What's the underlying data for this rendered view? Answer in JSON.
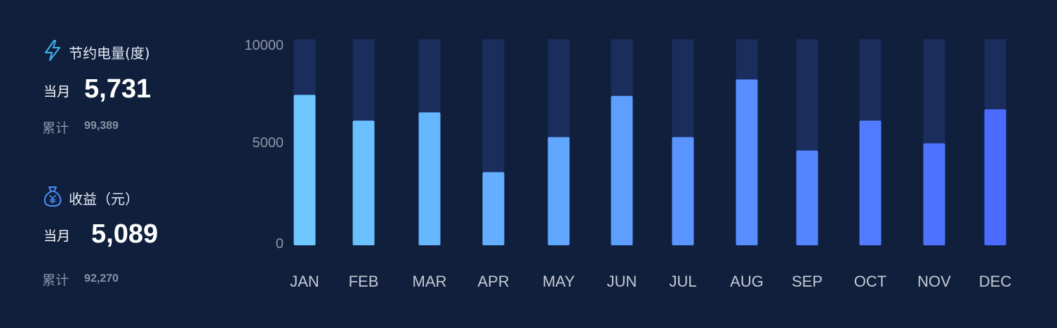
{
  "energy": {
    "title": "节约电量(度)",
    "icon": "lightning-icon",
    "month_label": "当月",
    "month_value": "5,731",
    "total_label": "累计",
    "total_value": "99,389"
  },
  "revenue": {
    "title": "收益（元）",
    "icon": "money-bag-icon",
    "month_label": "当月",
    "month_value": "5,089",
    "total_label": "累计",
    "total_value": "92,270"
  },
  "colors": {
    "background": "#101f3c",
    "track": "#1a2d5c",
    "bar_start": "#6ec8ff",
    "bar_end": "#4a6bff",
    "icon_lightning": "#3fb6f2",
    "icon_bag": "#4a8df5"
  },
  "chart_data": {
    "type": "bar",
    "categories": [
      "JAN",
      "FEB",
      "MAR",
      "APR",
      "MAY",
      "JUN",
      "JUL",
      "AUG",
      "SEP",
      "OCT",
      "NOV",
      "DEC"
    ],
    "values": [
      7300,
      6050,
      6450,
      3550,
      5250,
      7250,
      5250,
      8050,
      4600,
      6050,
      4950,
      6600
    ],
    "max": 10000,
    "ylim": [
      0,
      10000
    ],
    "yticks": [
      "10000",
      "5000",
      "0"
    ],
    "ytick_values": [
      10000,
      5000,
      0
    ],
    "background_track": true,
    "grid": false,
    "legend": "none"
  }
}
